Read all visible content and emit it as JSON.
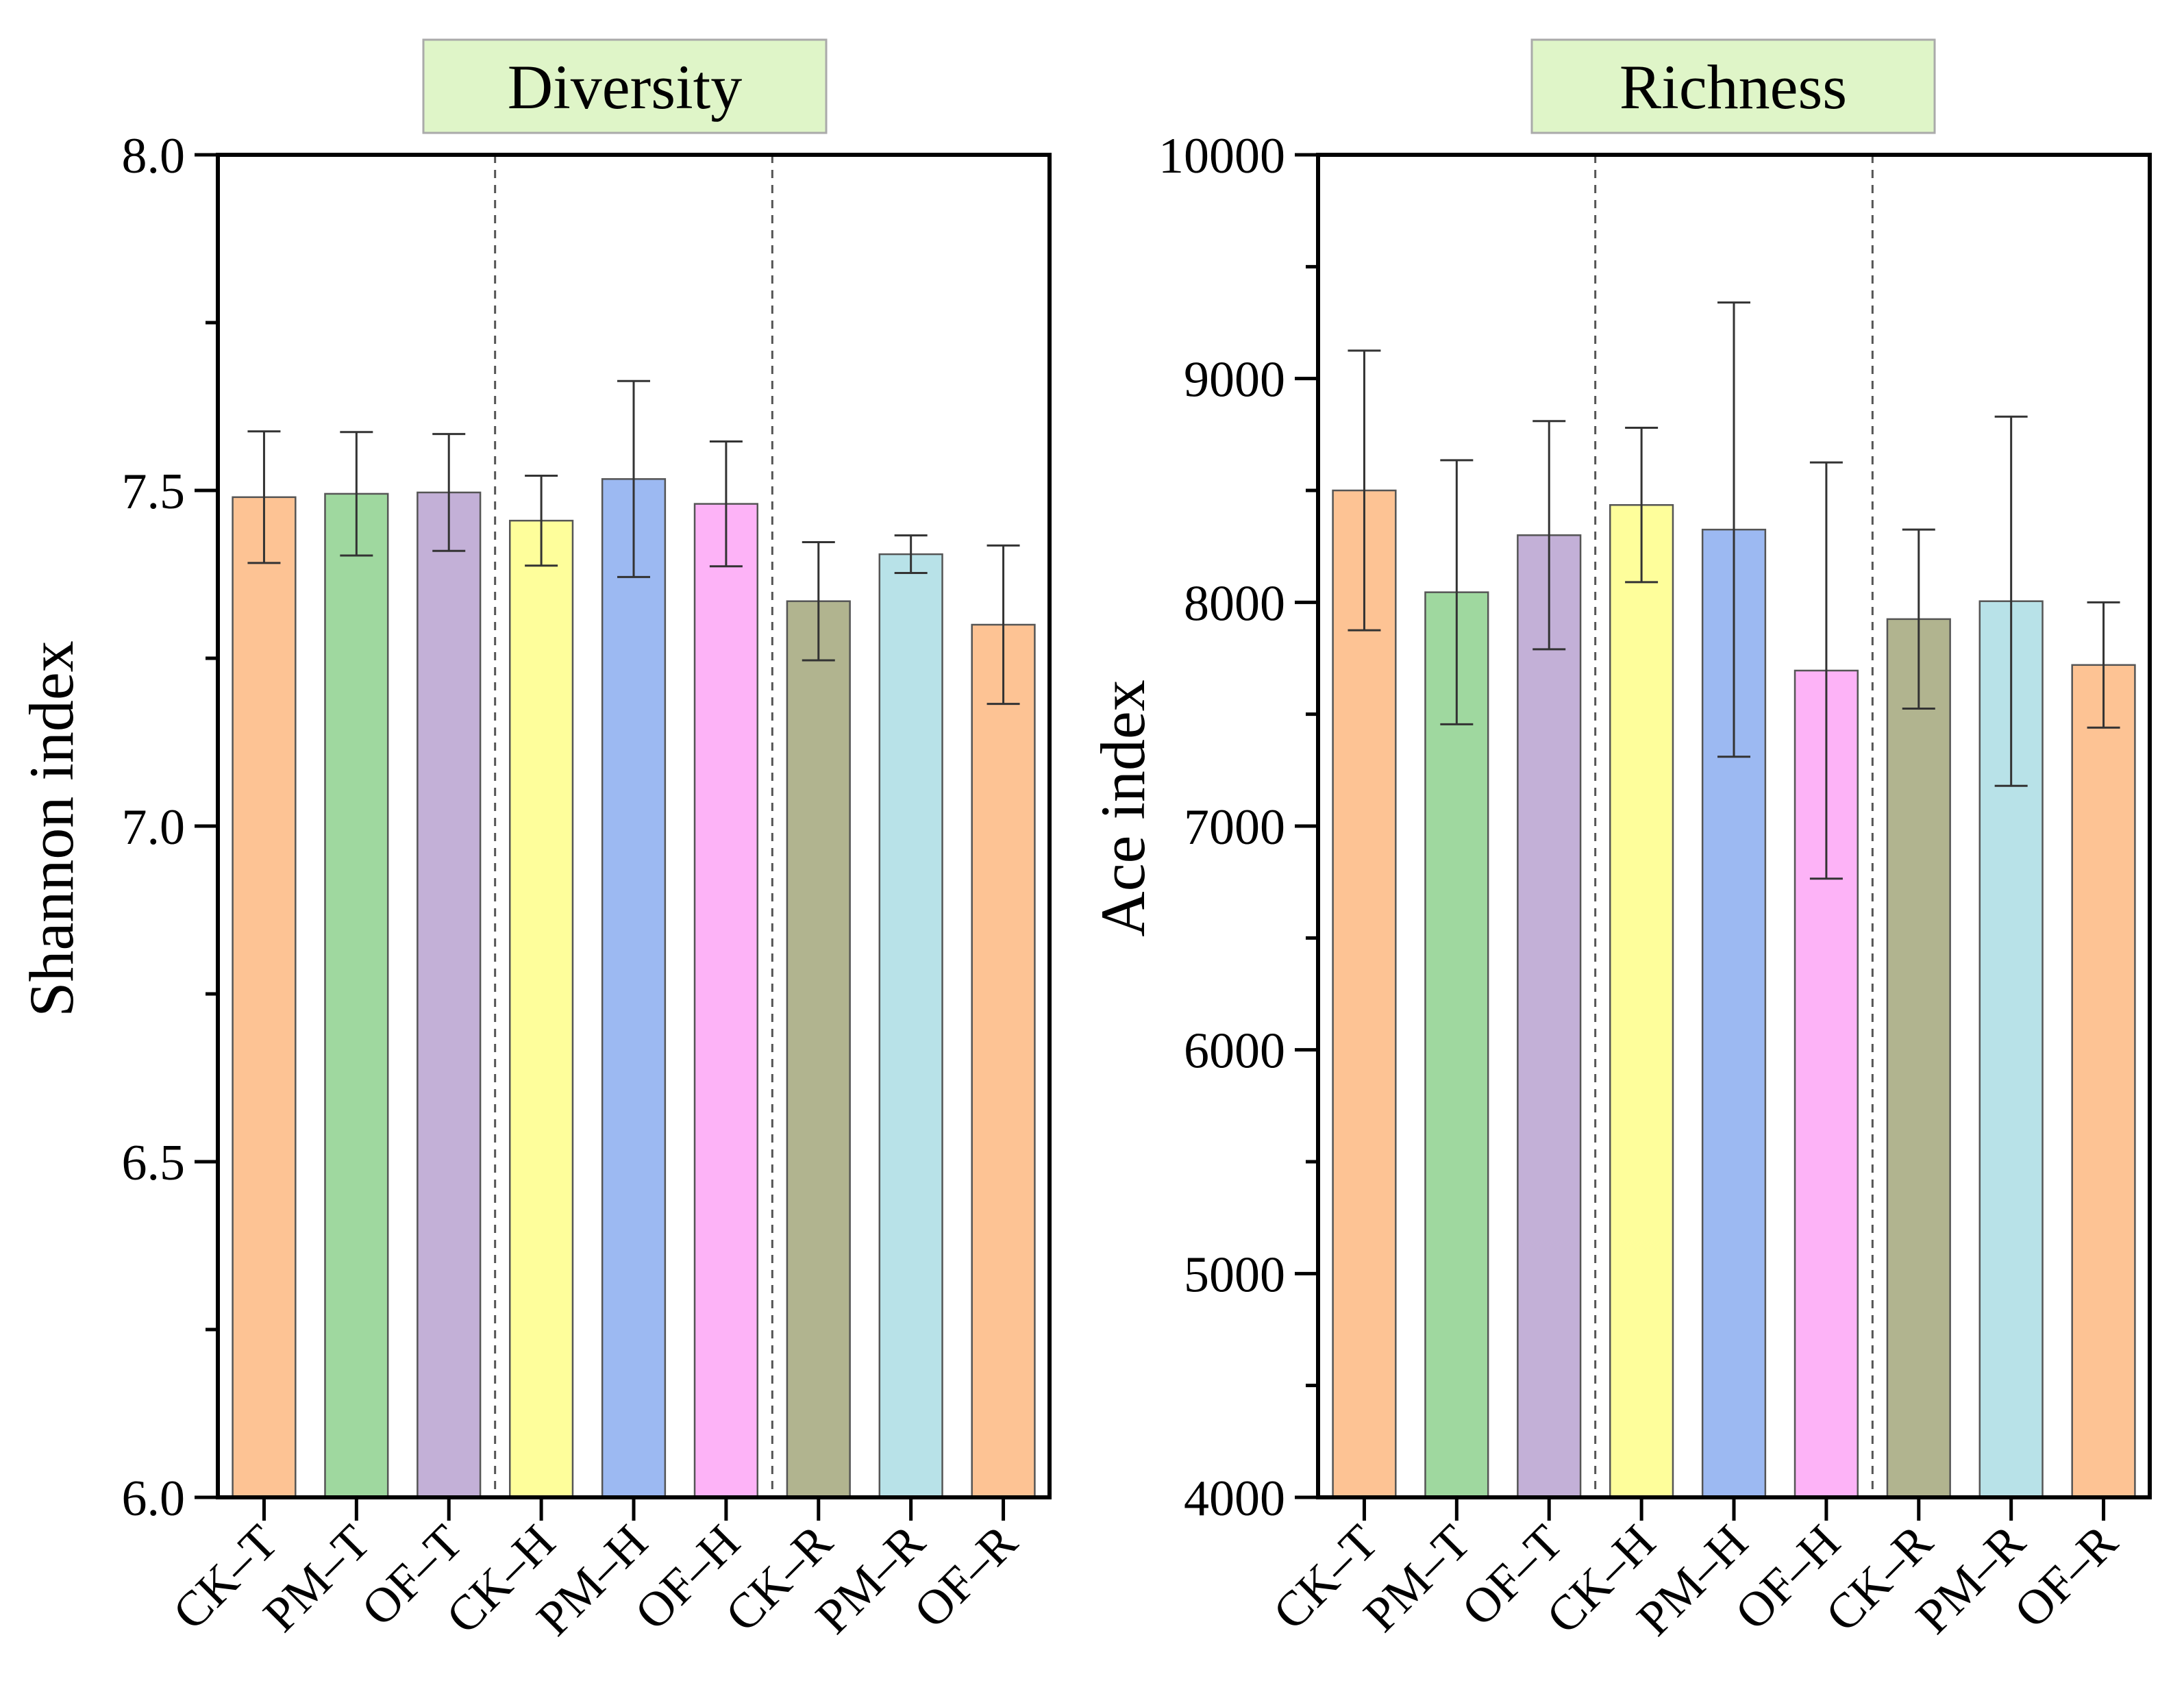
{
  "chart_data": [
    {
      "type": "bar",
      "title": "Diversity",
      "xlabel": "",
      "ylabel": "Shannon index",
      "ylim": [
        6.0,
        8.0
      ],
      "yticks": [
        6.0,
        6.5,
        7.0,
        7.5,
        8.0
      ],
      "ytick_labels": [
        "6.0",
        "6.5",
        "7.0",
        "7.5",
        "8.0"
      ],
      "minor_yticks": [
        6.25,
        6.75,
        7.25,
        7.75
      ],
      "categories": [
        "CK–T",
        "PM–T",
        "OF–T",
        "CK–H",
        "PM–H",
        "OF–H",
        "CK–R",
        "PM–R",
        "OF–R"
      ],
      "values": [
        7.49,
        7.495,
        7.497,
        7.455,
        7.517,
        7.48,
        7.335,
        7.405,
        7.3
      ],
      "errors": [
        0.098,
        0.092,
        0.087,
        0.067,
        0.146,
        0.093,
        0.088,
        0.028,
        0.118
      ],
      "group_separators_after": [
        3,
        6
      ],
      "grid": false
    },
    {
      "type": "bar",
      "title": "Richness",
      "xlabel": "",
      "ylabel": "Ace index",
      "ylim": [
        4000,
        10000
      ],
      "yticks": [
        4000,
        5000,
        6000,
        7000,
        8000,
        9000,
        10000
      ],
      "ytick_labels": [
        "4000",
        "5000",
        "6000",
        "7000",
        "8000",
        "9000",
        "10000"
      ],
      "minor_yticks": [
        4500,
        5500,
        6500,
        7500,
        8500,
        9500
      ],
      "categories": [
        "CK–T",
        "PM–T",
        "OF–T",
        "CK–H",
        "PM–H",
        "OF–H",
        "CK–R",
        "PM–R",
        "OF–R"
      ],
      "values": [
        8500,
        8045,
        8300,
        8435,
        8325,
        7695,
        7925,
        8005,
        7720
      ],
      "errors": [
        625,
        590,
        510,
        345,
        1015,
        930,
        400,
        825,
        280
      ],
      "group_separators_after": [
        3,
        6
      ],
      "grid": false
    }
  ],
  "bar_colors": [
    "#fdc394",
    "#9fd89f",
    "#c3b0d7",
    "#fefe9b",
    "#9cb9f2",
    "#fdb3f7",
    "#b1b48f",
    "#b8e2e8",
    "#fdc394"
  ],
  "title_box_color": "#dff5c8"
}
